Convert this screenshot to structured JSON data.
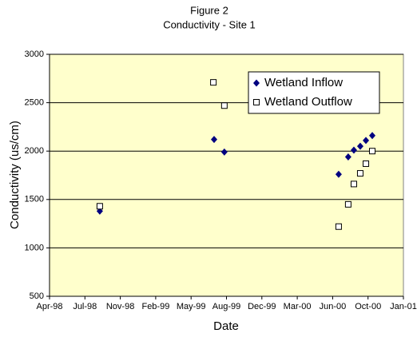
{
  "chart_data": {
    "type": "scatter",
    "title": "Figure 2",
    "subtitle": "Conductivity - Site 1",
    "x_label": "Date",
    "y_label": "Conductivity  (us/cm)",
    "xlim": [
      35900,
      36900
    ],
    "xticks": [
      {
        "value": 35900,
        "label": "Apr-98"
      },
      {
        "value": 36000,
        "label": "Jul-98"
      },
      {
        "value": 36100,
        "label": "Nov-98"
      },
      {
        "value": 36200,
        "label": "Feb-99"
      },
      {
        "value": 36300,
        "label": "May-99"
      },
      {
        "value": 36400,
        "label": "Aug-99"
      },
      {
        "value": 36500,
        "label": "Dec-99"
      },
      {
        "value": 36600,
        "label": "Mar-00"
      },
      {
        "value": 36700,
        "label": "Jun-00"
      },
      {
        "value": 36800,
        "label": "Oct-00"
      },
      {
        "value": 36900,
        "label": "Jan-01"
      }
    ],
    "ylim": [
      500,
      3000
    ],
    "yticks": [
      500,
      1000,
      1500,
      2000,
      2500,
      3000
    ],
    "grid": true,
    "legend": "upper right",
    "background": "#ffffcc",
    "series": [
      {
        "name": "Wetland Inflow",
        "color": "#000080",
        "marker": "diamond",
        "x": [
          36042,
          36365,
          36394,
          36717,
          36744,
          36760,
          36778,
          36794,
          36812
        ],
        "values": [
          1380,
          2120,
          1990,
          1760,
          1940,
          2010,
          2050,
          2110,
          2160
        ]
      },
      {
        "name": "Wetland Outflow",
        "color": "#000000",
        "marker": "square",
        "x": [
          36042,
          36363,
          36394,
          36717,
          36744,
          36760,
          36778,
          36794,
          36812
        ],
        "values": [
          1430,
          2710,
          2470,
          1220,
          1450,
          1660,
          1770,
          1870,
          2000
        ]
      }
    ]
  }
}
